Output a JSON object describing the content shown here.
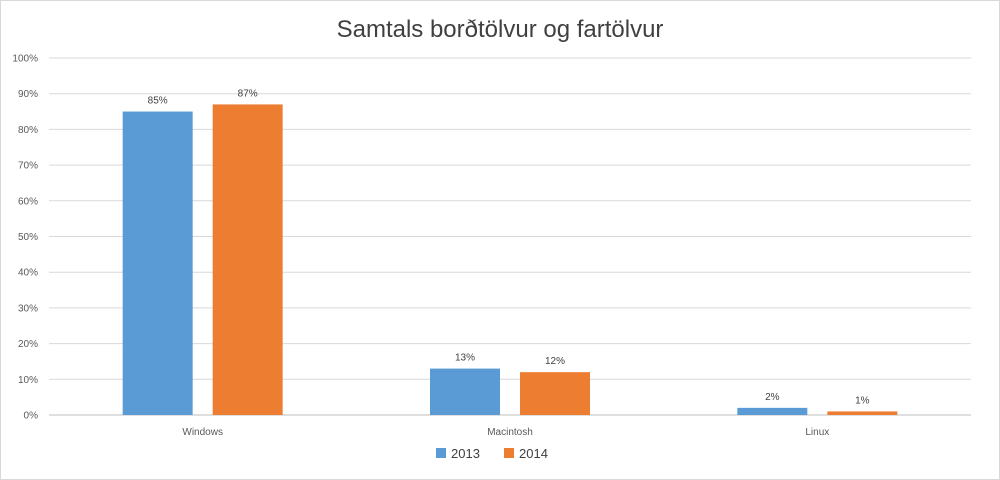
{
  "chart_data": {
    "type": "bar",
    "title": "Samtals borðtölvur og fartölvur",
    "categories": [
      "Windows",
      "Macintosh",
      "Linux"
    ],
    "series": [
      {
        "name": "2013",
        "color": "#5b9bd5",
        "values": [
          85,
          13,
          2
        ],
        "labels": [
          "85%",
          "13%",
          "2%"
        ]
      },
      {
        "name": "2014",
        "color": "#ed7d31",
        "values": [
          87,
          12,
          1
        ],
        "labels": [
          "87%",
          "12%",
          "1%"
        ]
      }
    ],
    "ylim": [
      0,
      100
    ],
    "yticks": [
      0,
      10,
      20,
      30,
      40,
      50,
      60,
      70,
      80,
      90,
      100
    ],
    "ytick_labels": [
      "0%",
      "10%",
      "20%",
      "30%",
      "40%",
      "50%",
      "60%",
      "70%",
      "80%",
      "90%",
      "100%"
    ],
    "xlabel": "",
    "ylabel": "",
    "grid": true,
    "legend_position": "bottom"
  }
}
